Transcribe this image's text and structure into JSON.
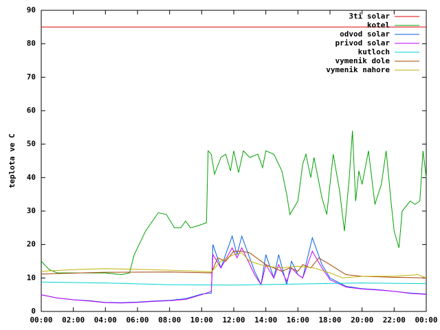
{
  "chart_data": {
    "type": "line",
    "ylabel": "teplota ve C",
    "xlim": [
      0,
      24
    ],
    "ylim": [
      0,
      90
    ],
    "xticks": [
      {
        "value": 0,
        "label": "00:00"
      },
      {
        "value": 2,
        "label": "02:00"
      },
      {
        "value": 4,
        "label": "04:00"
      },
      {
        "value": 6,
        "label": "06:00"
      },
      {
        "value": 8,
        "label": "08:00"
      },
      {
        "value": 10,
        "label": "10:00"
      },
      {
        "value": 12,
        "label": "12:00"
      },
      {
        "value": 14,
        "label": "14:00"
      },
      {
        "value": 16,
        "label": "16:00"
      },
      {
        "value": 18,
        "label": "18:00"
      },
      {
        "value": 20,
        "label": "20:00"
      },
      {
        "value": 22,
        "label": "22:00"
      },
      {
        "value": 24,
        "label": "00:00"
      }
    ],
    "yticks": [
      0,
      10,
      20,
      30,
      40,
      50,
      60,
      70,
      80,
      90
    ],
    "legend": "top-right",
    "series": [
      {
        "name": "3ti solar",
        "color": "#e00000",
        "x": [
          0,
          24
        ],
        "values": [
          85,
          85
        ]
      },
      {
        "name": "kotel",
        "color": "#00a000",
        "x": [
          0,
          0.5,
          1,
          2,
          3,
          4,
          5,
          5.5,
          5.8,
          6.5,
          7.3,
          7.8,
          8.3,
          8.7,
          9,
          9.3,
          9.7,
          10.3,
          10.4,
          10.6,
          10.8,
          11.2,
          11.5,
          11.8,
          12,
          12.3,
          12.6,
          13,
          13.5,
          13.8,
          14,
          14.5,
          15,
          15.3,
          15.5,
          16,
          16.3,
          16.5,
          16.8,
          17,
          17.5,
          17.8,
          18,
          18.2,
          18.6,
          18.9,
          19.2,
          19.4,
          19.6,
          19.8,
          20,
          20.4,
          20.8,
          21.2,
          21.5,
          21.8,
          22,
          22.3,
          22.5,
          23,
          23.3,
          23.6,
          23.8,
          24
        ],
        "values": [
          15,
          12.5,
          11.5,
          11.5,
          11.5,
          11.5,
          11,
          11.5,
          17,
          24,
          29.5,
          29,
          25,
          25,
          27,
          25,
          25.5,
          26.5,
          48,
          47,
          41,
          46,
          47,
          42,
          48,
          41.5,
          48,
          46,
          47,
          43,
          48,
          47,
          42,
          35,
          29,
          33,
          44,
          47,
          40,
          46,
          34,
          29,
          38,
          47,
          36,
          24,
          40,
          54,
          33,
          42,
          38,
          48,
          32,
          38,
          48,
          33,
          24,
          19,
          30,
          33,
          32,
          33,
          48,
          40
        ]
      },
      {
        "name": "odvod solar",
        "color": "#0060e0",
        "x": [
          0,
          1,
          2,
          3,
          4,
          5,
          6,
          7,
          8,
          9,
          10,
          10.6,
          10.7,
          11.2,
          11.9,
          12.2,
          12.5,
          13.3,
          13.7,
          14,
          14.5,
          14.8,
          15.3,
          15.6,
          16,
          16.3,
          16.6,
          16.9,
          17.5,
          18,
          19,
          20,
          21,
          22,
          23,
          24
        ],
        "values": [
          5,
          4,
          3.5,
          3.2,
          2.7,
          2.6,
          2.8,
          3.1,
          3.3,
          3.8,
          5.2,
          5.5,
          20,
          13,
          22.5,
          17,
          22.5,
          12,
          8,
          17,
          10,
          17,
          8,
          15,
          11,
          10,
          16,
          22,
          14,
          10,
          7.5,
          6.8,
          6.5,
          6,
          5.5,
          5.2
        ]
      },
      {
        "name": "privod solar",
        "color": "#c000ff",
        "x": [
          0,
          1,
          2,
          3,
          4,
          5,
          6,
          7,
          8,
          9,
          10,
          10.6,
          10.7,
          11.2,
          11.9,
          12.2,
          12.5,
          13.3,
          13.7,
          14,
          14.5,
          14.8,
          15.3,
          15.6,
          16,
          16.3,
          16.6,
          16.9,
          17.5,
          18,
          19,
          20,
          21,
          22,
          23,
          24
        ],
        "values": [
          5,
          4,
          3.5,
          3.1,
          2.6,
          2.5,
          2.7,
          3,
          3.2,
          3.6,
          5,
          6,
          17,
          13,
          19,
          16,
          19,
          11,
          8,
          14,
          10,
          14,
          9,
          13,
          11,
          10,
          14,
          18,
          13,
          9.5,
          7.3,
          6.7,
          6.4,
          6,
          5.4,
          5.1
        ]
      },
      {
        "name": "kutloch",
        "color": "#00d0d0",
        "x": [
          0,
          4,
          8,
          12,
          16,
          20,
          24
        ],
        "values": [
          8.8,
          8.5,
          8,
          7.9,
          8.2,
          8.5,
          8.3
        ]
      },
      {
        "name": "vymenik dole",
        "color": "#a04000",
        "x": [
          0,
          4,
          8,
          10.6,
          11,
          11.5,
          12,
          12.5,
          13,
          14,
          15,
          15.5,
          16,
          16.3,
          16.8,
          17.3,
          18,
          19,
          20,
          22,
          24
        ],
        "values": [
          11.2,
          11.7,
          11.8,
          11.5,
          16,
          15,
          18,
          18,
          17.5,
          14,
          12,
          13,
          12,
          14,
          13,
          16,
          14,
          11,
          10.5,
          10.2,
          10
        ]
      },
      {
        "name": "vymenik nahore",
        "color": "#c0b000",
        "x": [
          0,
          2,
          4,
          6,
          8,
          10,
          10.6,
          11.2,
          12,
          12.5,
          13,
          14,
          15,
          16,
          17,
          18,
          18.8,
          20,
          22,
          23.5,
          24
        ],
        "values": [
          12,
          12.5,
          12.8,
          12.6,
          12.3,
          12,
          11.8,
          15,
          17,
          17.5,
          15,
          13.5,
          13,
          13.5,
          13,
          11.5,
          10,
          10.5,
          10.5,
          11,
          10
        ]
      }
    ]
  }
}
